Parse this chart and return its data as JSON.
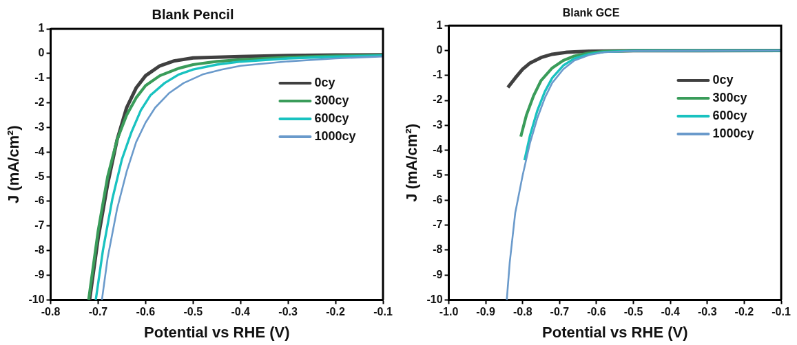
{
  "chart_data": [
    {
      "type": "line",
      "title": "Blank Pencil",
      "xlabel": "Potential vs RHE (V)",
      "ylabel": "J (mA/cm²)",
      "xlim": [
        -0.8,
        -0.1
      ],
      "ylim": [
        -10,
        1
      ],
      "xticks": [
        -0.8,
        -0.7,
        -0.6,
        -0.5,
        -0.4,
        -0.3,
        -0.2,
        -0.1
      ],
      "yticks": [
        -10,
        -9,
        -8,
        -7,
        -6,
        -5,
        -4,
        -3,
        -2,
        -1,
        0,
        1
      ],
      "grid": false,
      "legend": "top right",
      "series": [
        {
          "name": "0cy",
          "color": "#404040",
          "x": [
            -0.718,
            -0.7,
            -0.68,
            -0.66,
            -0.64,
            -0.62,
            -0.6,
            -0.57,
            -0.54,
            -0.5,
            -0.45,
            -0.4,
            -0.3,
            -0.2,
            -0.1
          ],
          "values": [
            -10,
            -7.5,
            -5.3,
            -3.5,
            -2.2,
            -1.4,
            -0.9,
            -0.5,
            -0.3,
            -0.18,
            -0.15,
            -0.12,
            -0.08,
            -0.06,
            -0.05
          ]
        },
        {
          "name": "300cy",
          "color": "#3a9c5a",
          "x": [
            -0.72,
            -0.7,
            -0.68,
            -0.66,
            -0.64,
            -0.62,
            -0.6,
            -0.57,
            -0.53,
            -0.5,
            -0.45,
            -0.4,
            -0.3,
            -0.2,
            -0.1
          ],
          "values": [
            -10,
            -7.2,
            -5.0,
            -3.5,
            -2.5,
            -1.8,
            -1.3,
            -0.9,
            -0.6,
            -0.45,
            -0.32,
            -0.25,
            -0.15,
            -0.1,
            -0.07
          ]
        },
        {
          "name": "600cy",
          "color": "#19c2c0",
          "x": [
            -0.705,
            -0.69,
            -0.67,
            -0.65,
            -0.63,
            -0.61,
            -0.59,
            -0.56,
            -0.53,
            -0.5,
            -0.45,
            -0.4,
            -0.3,
            -0.2,
            -0.1
          ],
          "values": [
            -10,
            -8.0,
            -5.9,
            -4.3,
            -3.2,
            -2.3,
            -1.7,
            -1.2,
            -0.85,
            -0.65,
            -0.45,
            -0.33,
            -0.2,
            -0.13,
            -0.08
          ]
        },
        {
          "name": "1000cy",
          "color": "#6a9acb",
          "x": [
            -0.692,
            -0.68,
            -0.66,
            -0.64,
            -0.62,
            -0.6,
            -0.58,
            -0.55,
            -0.52,
            -0.48,
            -0.44,
            -0.4,
            -0.3,
            -0.2,
            -0.1
          ],
          "values": [
            -10,
            -8.3,
            -6.3,
            -4.8,
            -3.6,
            -2.8,
            -2.2,
            -1.6,
            -1.2,
            -0.85,
            -0.65,
            -0.5,
            -0.32,
            -0.2,
            -0.12
          ]
        }
      ]
    },
    {
      "type": "line",
      "title": "Blank GCE",
      "xlabel": "Potential vs RHE (V)",
      "ylabel": "J (mA/cm²)",
      "xlim": [
        -1.0,
        -0.1
      ],
      "ylim": [
        -10,
        1
      ],
      "xticks": [
        {
          "value": -1.0,
          "label": "-1.0"
        },
        -0.9,
        -0.8,
        -0.7,
        -0.6,
        -0.5,
        -0.4,
        -0.3,
        -0.2,
        -0.1
      ],
      "yticks": [
        -10,
        -9,
        -8,
        -7,
        -6,
        -5,
        -4,
        -3,
        -2,
        -1,
        0,
        1
      ],
      "grid": false,
      "legend": "top right",
      "series": [
        {
          "name": "0cy",
          "color": "#404040",
          "x": [
            -0.84,
            -0.82,
            -0.8,
            -0.78,
            -0.75,
            -0.72,
            -0.68,
            -0.62,
            -0.5,
            -0.1
          ],
          "values": [
            -1.48,
            -1.1,
            -0.75,
            -0.5,
            -0.28,
            -0.15,
            -0.07,
            -0.03,
            -0.01,
            0
          ]
        },
        {
          "name": "300cy",
          "color": "#3a9c5a",
          "x": [
            -0.805,
            -0.79,
            -0.77,
            -0.75,
            -0.72,
            -0.69,
            -0.66,
            -0.62,
            -0.58,
            -0.5,
            -0.1
          ],
          "values": [
            -3.45,
            -2.6,
            -1.8,
            -1.2,
            -0.7,
            -0.4,
            -0.22,
            -0.1,
            -0.04,
            -0.01,
            0
          ]
        },
        {
          "name": "600cy",
          "color": "#19c2c0",
          "x": [
            -0.795,
            -0.78,
            -0.76,
            -0.74,
            -0.72,
            -0.69,
            -0.66,
            -0.62,
            -0.58,
            -0.5,
            -0.1
          ],
          "values": [
            -4.4,
            -3.4,
            -2.4,
            -1.65,
            -1.1,
            -0.6,
            -0.32,
            -0.14,
            -0.06,
            -0.01,
            0
          ]
        },
        {
          "name": "1000cy",
          "color": "#6a9acb",
          "x": [
            -0.843,
            -0.835,
            -0.82,
            -0.8,
            -0.78,
            -0.76,
            -0.74,
            -0.72,
            -0.69,
            -0.66,
            -0.62,
            -0.58,
            -0.5,
            -0.1
          ],
          "values": [
            -10,
            -8.5,
            -6.5,
            -5.0,
            -3.7,
            -2.7,
            -1.9,
            -1.3,
            -0.75,
            -0.4,
            -0.18,
            -0.07,
            -0.02,
            0
          ]
        }
      ]
    }
  ]
}
